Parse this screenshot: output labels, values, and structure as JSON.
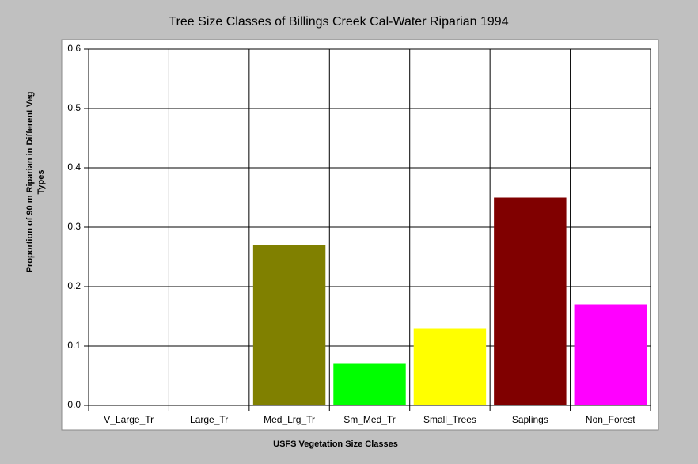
{
  "chart_data": {
    "type": "bar",
    "title": "Tree Size Classes of Billings Creek Cal-Water Riparian 1994",
    "x_label": "USFS Vegetation Size Classes",
    "y_label": [
      "Proportion of 90 m Riparian in Different Veg",
      "Types"
    ],
    "categories": [
      "V_Large_Tr",
      "Large_Tr",
      "Med_Lrg_Tr",
      "Sm_Med_Tr",
      "Small_Trees",
      "Saplings",
      "Non_Forest"
    ],
    "values": [
      0,
      0,
      0.27,
      0.07,
      0.13,
      0.35,
      0.17
    ],
    "colors": [
      null,
      null,
      "#808000",
      "#00ff00",
      "#ffff00",
      "#800000",
      "#ff00ff"
    ],
    "ylim": [
      0,
      0.6
    ],
    "yticks": [
      {
        "value": 0,
        "label": "0.0"
      },
      0.1,
      0.2,
      0.3,
      0.4,
      0.5,
      0.6
    ],
    "grid": true
  }
}
